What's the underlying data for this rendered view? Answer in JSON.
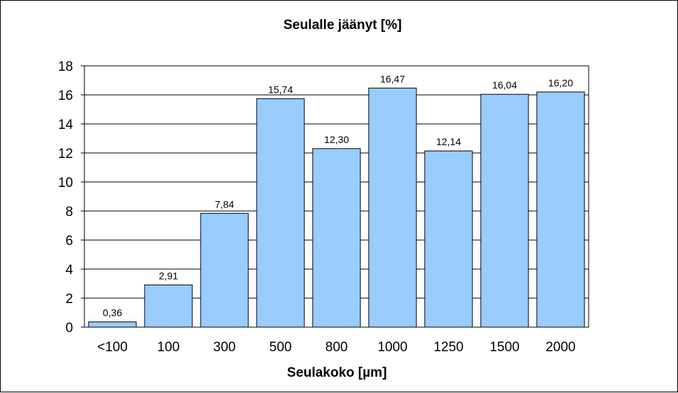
{
  "chart_data": {
    "type": "bar",
    "title": "Seulalle jäänyt [%]",
    "xlabel": "Seulakoko [µm]",
    "ylabel": "",
    "categories": [
      "<100",
      "100",
      "300",
      "500",
      "800",
      "1000",
      "1250",
      "1500",
      "2000"
    ],
    "values": [
      0.36,
      2.91,
      7.84,
      15.74,
      12.3,
      16.47,
      12.14,
      16.04,
      16.2
    ],
    "value_labels": [
      "0,36",
      "2,91",
      "7,84",
      "15,74",
      "12,30",
      "16,47",
      "12,14",
      "16,04",
      "16,20"
    ],
    "ylim": [
      0,
      18
    ],
    "yticks": [
      0,
      2,
      4,
      6,
      8,
      10,
      12,
      14,
      16,
      18
    ],
    "grid": true,
    "legend": "none",
    "colors": {
      "bar_fill": "#99CCFF",
      "bar_stroke": "#000000",
      "grid": "#000000"
    }
  }
}
